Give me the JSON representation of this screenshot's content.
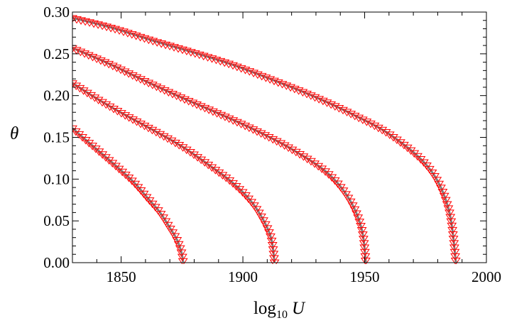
{
  "chart_data": {
    "type": "line",
    "xlabel": {
      "main": "log",
      "sub": "10",
      "var": "U"
    },
    "ylabel": "θ",
    "xlim": [
      1830,
      2000
    ],
    "ylim": [
      0,
      0.3
    ],
    "x_ticks": [
      1850,
      1900,
      1950,
      2000
    ],
    "y_ticks": [
      0.0,
      0.05,
      0.1,
      0.15,
      0.2,
      0.25,
      0.3
    ],
    "x_tick_labels": [
      "1850",
      "1900",
      "1950",
      "2000"
    ],
    "y_tick_labels": [
      "0.00",
      "0.05",
      "0.10",
      "0.15",
      "0.20",
      "0.25",
      "0.30"
    ],
    "grid": false,
    "colors": {
      "fit_line": "#808080",
      "marker": "#ff0000",
      "frame": "#000000"
    },
    "marker_symbol": "down-triangle",
    "series": [
      {
        "x": [
          1830,
          1836.3,
          1842.7,
          1849,
          1855.3,
          1861.6,
          1866,
          1870.4,
          1873,
          1874.8,
          1875.5
        ],
        "y": [
          0.161,
          0.145,
          0.129,
          0.113,
          0.096,
          0.075,
          0.06,
          0.04,
          0.027,
          0.012,
          0.0
        ]
      },
      {
        "x": [
          1830,
          1841.4,
          1852.8,
          1864.2,
          1875.6,
          1887,
          1896.1,
          1903.5,
          1908.6,
          1911.7,
          1913
        ],
        "y": [
          0.215,
          0.194,
          0.175,
          0.157,
          0.138,
          0.115,
          0.095,
          0.073,
          0.05,
          0.028,
          0.0
        ]
      },
      {
        "x": [
          1830,
          1845.1,
          1860.2,
          1875.3,
          1890.4,
          1905.5,
          1920.6,
          1934.9,
          1943.9,
          1948.8,
          1950.5
        ],
        "y": [
          0.257,
          0.238,
          0.217,
          0.197,
          0.178,
          0.158,
          0.135,
          0.107,
          0.075,
          0.04,
          0.0
        ]
      },
      {
        "x": [
          1830,
          1846.4,
          1862.8,
          1879.2,
          1895.6,
          1912,
          1928.3,
          1944.7,
          1961.1,
          1976.5,
          1984.4,
          1987.5
        ],
        "y": [
          0.293,
          0.281,
          0.266,
          0.252,
          0.237,
          0.219,
          0.2,
          0.178,
          0.152,
          0.113,
          0.065,
          0.0
        ]
      }
    ]
  }
}
